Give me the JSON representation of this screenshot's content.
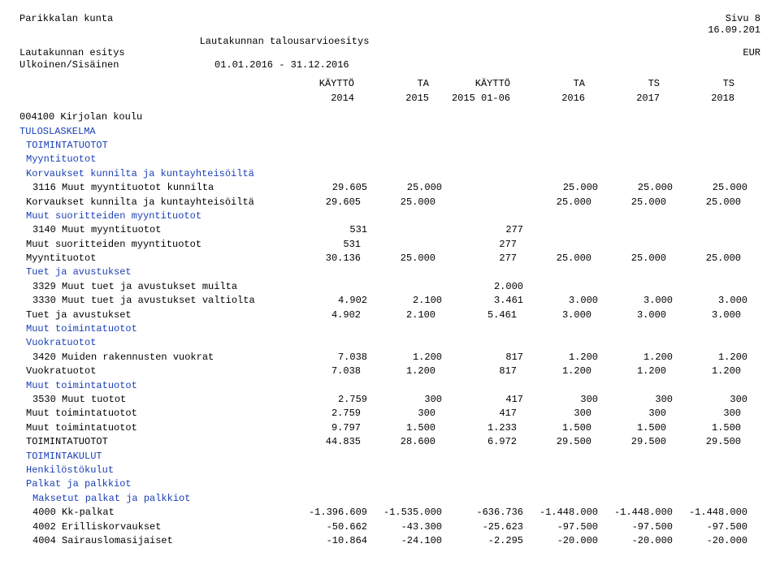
{
  "header": {
    "org": "Parikkalan kunta",
    "page": "Sivu   8",
    "date": "16.09.201",
    "subtitle_center": "Lautakunnan talousarvioesitys",
    "line2_left": "Lautakunnan esitys",
    "line2_right": "EUR",
    "line3_left": "Ulkoinen/Sisäinen",
    "line3_right": "01.01.2016 - 31.12.2016"
  },
  "columns": {
    "h1a": "KÄYTTÖ",
    "h1b": "2014",
    "h2a": "TA",
    "h2b": "2015",
    "h3a": "KÄYTTÖ",
    "h3b": "2015 01-06",
    "h4a": "TA",
    "h4b": "2016",
    "h5a": "TS",
    "h5b": "2017",
    "h6a": "TS",
    "h6b": "2018"
  },
  "section": {
    "code": "004100 Kirjolan koulu",
    "g1": "TULOSLASKELMA",
    "g2": "TOIMINTATUOTOT",
    "g3": "Myyntituotot",
    "g4": "Korvaukset kunnilta ja kuntayhteisöiltä"
  },
  "rows": {
    "r1": {
      "label": "3116 Muut myyntituotot kunnilta",
      "v": [
        "29.605",
        "25.000",
        "",
        "25.000",
        "25.000",
        "25.000"
      ]
    },
    "r2": {
      "label": "Korvaukset kunnilta ja kuntayhteisöiltä",
      "v": [
        "29.605",
        "25.000",
        "",
        "25.000",
        "25.000",
        "25.000"
      ]
    },
    "g5": {
      "label": "Muut suoritteiden myyntituotot"
    },
    "r3": {
      "label": "3140 Muut myyntituotot",
      "v": [
        "531",
        "",
        "277",
        "",
        "",
        ""
      ]
    },
    "r4": {
      "label": "Muut suoritteiden myyntituotot",
      "v": [
        "531",
        "",
        "277",
        "",
        "",
        ""
      ]
    },
    "r5": {
      "label": "Myyntituotot",
      "v": [
        "30.136",
        "25.000",
        "277",
        "25.000",
        "25.000",
        "25.000"
      ]
    },
    "g6": {
      "label": "Tuet ja avustukset"
    },
    "r6": {
      "label": "3329 Muut tuet ja avustukset muilta",
      "v": [
        "",
        "",
        "2.000",
        "",
        "",
        ""
      ]
    },
    "r7": {
      "label": "3330 Muut tuet ja avustukset valtiolta",
      "v": [
        "4.902",
        "2.100",
        "3.461",
        "3.000",
        "3.000",
        "3.000"
      ]
    },
    "r8": {
      "label": "Tuet ja avustukset",
      "v": [
        "4.902",
        "2.100",
        "5.461",
        "3.000",
        "3.000",
        "3.000"
      ]
    },
    "g7": {
      "label": "Muut toimintatuotot"
    },
    "g8": {
      "label": "Vuokratuotot"
    },
    "r9": {
      "label": "3420 Muiden rakennusten vuokrat",
      "v": [
        "7.038",
        "1.200",
        "817",
        "1.200",
        "1.200",
        "1.200"
      ]
    },
    "r10": {
      "label": "Vuokratuotot",
      "v": [
        "7.038",
        "1.200",
        "817",
        "1.200",
        "1.200",
        "1.200"
      ]
    },
    "g9": {
      "label": "Muut toimintatuotot"
    },
    "r11": {
      "label": "3530 Muut tuotot",
      "v": [
        "2.759",
        "300",
        "417",
        "300",
        "300",
        "300"
      ]
    },
    "r12": {
      "label": "Muut toimintatuotot",
      "v": [
        "2.759",
        "300",
        "417",
        "300",
        "300",
        "300"
      ]
    },
    "r13": {
      "label": "Muut toimintatuotot",
      "v": [
        "9.797",
        "1.500",
        "1.233",
        "1.500",
        "1.500",
        "1.500"
      ]
    },
    "r14": {
      "label": "TOIMINTATUOTOT",
      "v": [
        "44.835",
        "28.600",
        "6.972",
        "29.500",
        "29.500",
        "29.500"
      ]
    },
    "g10": {
      "label": "TOIMINTAKULUT"
    },
    "g11": {
      "label": "Henkilöstökulut"
    },
    "g12": {
      "label": "Palkat ja palkkiot"
    },
    "g13": {
      "label": "Maksetut palkat ja palkkiot"
    },
    "r15": {
      "label": "4000 Kk-palkat",
      "v": [
        "-1.396.609",
        "-1.535.000",
        "-636.736",
        "-1.448.000",
        "-1.448.000",
        "-1.448.000"
      ]
    },
    "r16": {
      "label": "4002 Erilliskorvaukset",
      "v": [
        "-50.662",
        "-43.300",
        "-25.623",
        "-97.500",
        "-97.500",
        "-97.500"
      ]
    },
    "r17": {
      "label": "4004 Sairauslomasijaiset",
      "v": [
        "-10.864",
        "-24.100",
        "-2.295",
        "-20.000",
        "-20.000",
        "-20.000"
      ]
    }
  }
}
